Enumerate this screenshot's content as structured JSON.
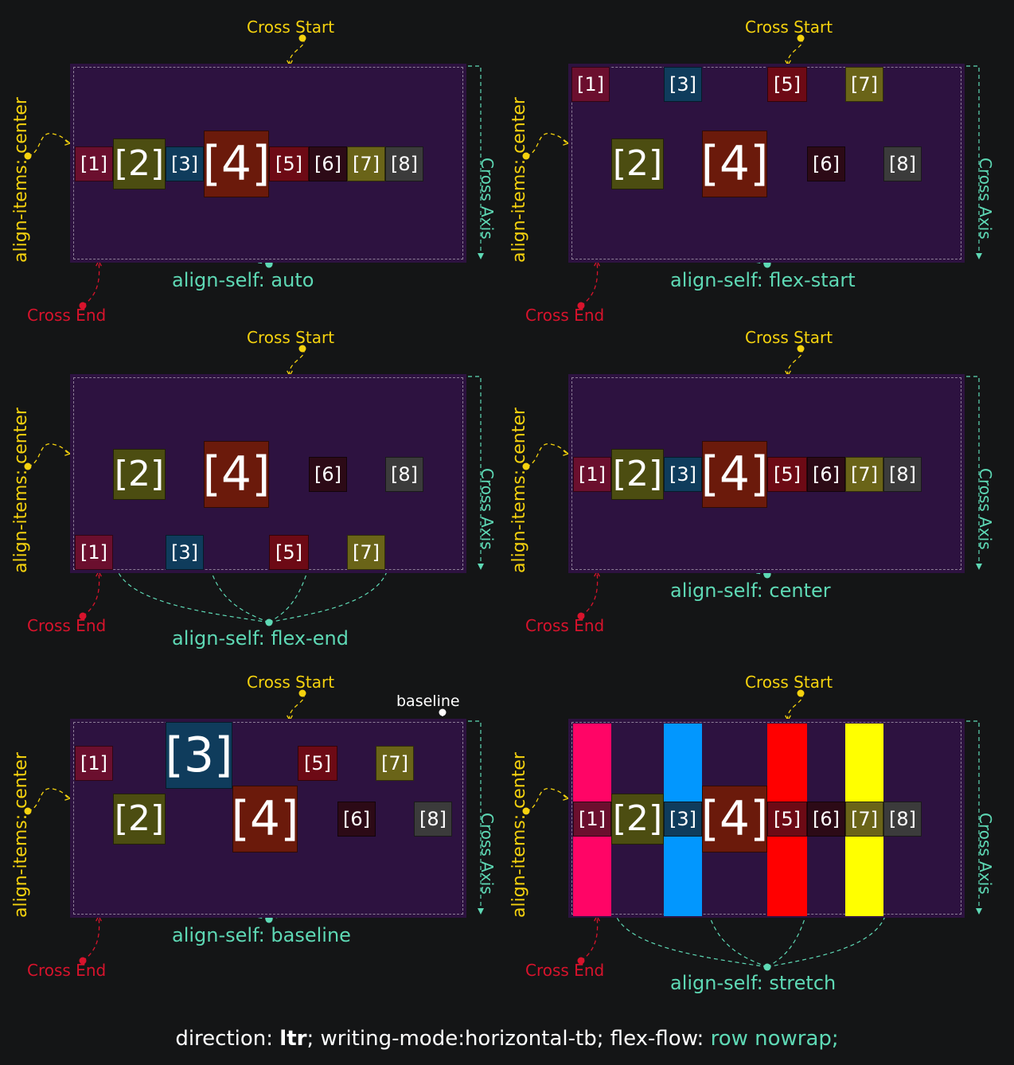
{
  "colors": {
    "background": "#141516",
    "container": "#2d1240",
    "cross_start": "#f5d20e",
    "cross_end": "#d8132c",
    "align_self": "#5ed9b5",
    "item1": "#6b0f2e",
    "item2": "#4c4d11",
    "item3": "#0f3c5c",
    "item4": "#6b1a0b",
    "item5": "#6d0a15",
    "item6": "#2c0a16",
    "item7": "#6a6418",
    "item8": "#3b3b3b",
    "stretch1": "#ff0566",
    "stretch3": "#0297fe",
    "stretch5": "#ff0000",
    "stretch7": "#ffff00"
  },
  "labels": {
    "cross_start": "Cross Start",
    "cross_end": "Cross End",
    "cross_axis": "Cross Axis",
    "align_items": "align-items: center",
    "baseline": "baseline"
  },
  "items": [
    "[1]",
    "[2]",
    "[3]",
    "[4]",
    "[5]",
    "[6]",
    "[7]",
    "[8]"
  ],
  "panels": [
    {
      "align_self": "align-self: auto"
    },
    {
      "align_self": "align-self: flex-start"
    },
    {
      "align_self": "align-self: flex-end"
    },
    {
      "align_self": "align-self: center"
    },
    {
      "align_self": "align-self: baseline"
    },
    {
      "align_self": "align-self: stretch"
    }
  ],
  "footer": {
    "prefix": "direction: ",
    "direction": "ltr",
    "middle": "; writing-mode:horizontal-tb; flex-flow: ",
    "flow": "row nowrap;"
  }
}
